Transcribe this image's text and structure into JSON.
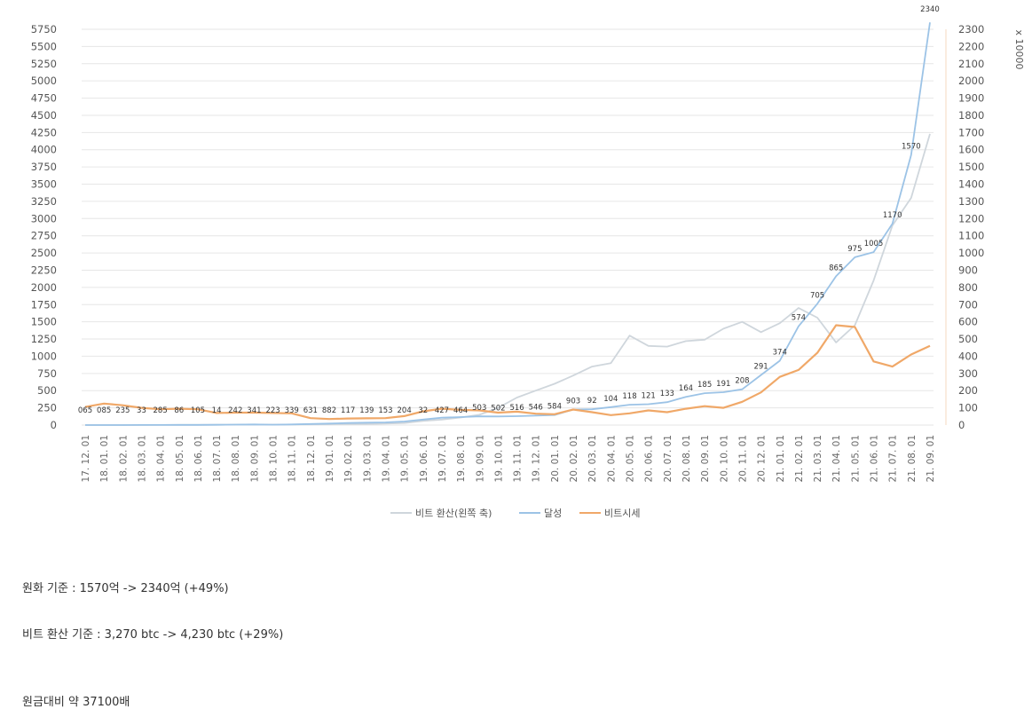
{
  "chart_data": {
    "type": "line",
    "title": "",
    "y_left": {
      "min": 0,
      "max": 5750,
      "step": 250
    },
    "y_right": {
      "min": 0,
      "max": 2300,
      "step": 100,
      "unit_label": "x 10000"
    },
    "x_categories": [
      "17. 12. 01",
      "18. 01. 01",
      "18. 02. 01",
      "18. 03. 01",
      "18. 04. 01",
      "18. 05. 01",
      "18. 06. 01",
      "18. 07. 01",
      "18. 08. 01",
      "18. 09. 01",
      "18. 10. 01",
      "18. 11. 01",
      "18. 12. 01",
      "19. 01. 01",
      "19. 02. 01",
      "19. 03. 01",
      "19. 04. 01",
      "19. 05. 01",
      "19. 06. 01",
      "19. 07. 01",
      "19. 08. 01",
      "19. 09. 01",
      "19. 10. 01",
      "19. 11. 01",
      "19. 12. 01",
      "20. 01. 01",
      "20. 02. 01",
      "20. 03. 01",
      "20. 04. 01",
      "20. 05. 01",
      "20. 06. 01",
      "20. 07. 01",
      "20. 08. 01",
      "20. 09. 01",
      "20. 10. 01",
      "20. 11. 01",
      "20. 12. 01",
      "21. 01. 01",
      "21. 02. 01",
      "21. 03. 01",
      "21. 04. 01",
      "21. 05. 01",
      "21. 06. 01",
      "21. 07. 01",
      "21. 08. 01",
      "21. 09. 01"
    ],
    "series": [
      {
        "name": "비트 환산(왼쪽 축)",
        "axis": "left",
        "color": "#cfd6dc",
        "values": [
          0,
          0,
          0,
          0,
          1,
          2,
          3,
          4,
          5,
          6,
          7,
          8,
          10,
          12,
          14,
          16,
          20,
          30,
          60,
          80,
          110,
          150,
          250,
          400,
          500,
          600,
          720,
          850,
          900,
          1300,
          1150,
          1140,
          1220,
          1240,
          1400,
          1500,
          1350,
          1480,
          1700,
          1560,
          1200,
          1450,
          2100,
          2900,
          3300,
          4230
        ]
      },
      {
        "name": "달성",
        "axis": "right",
        "color": "#9cc3e6",
        "values": [
          0.065,
          0.085,
          0.23,
          0.33,
          0.285,
          0.86,
          1.05,
          1.4,
          2.42,
          3.41,
          2.23,
          3.39,
          6.31,
          8.82,
          11.7,
          13.9,
          15.3,
          20.4,
          32,
          42.7,
          46.4,
          50.3,
          50.2,
          51.6,
          54.6,
          58.4,
          90.3,
          92,
          104,
          118,
          121,
          133,
          164,
          185,
          191,
          208,
          291,
          374,
          574,
          705,
          865,
          975,
          1005,
          1170,
          1570,
          2340
        ]
      },
      {
        "name": "비트시세",
        "axis": "right",
        "color": "#f0a868",
        "values": [
          105,
          125,
          115,
          100,
          92,
          95,
          92,
          70,
          72,
          72,
          70,
          68,
          40,
          35,
          38,
          39,
          40,
          52,
          80,
          95,
          88,
          85,
          72,
          78,
          66,
          63,
          90,
          75,
          58,
          68,
          85,
          75,
          95,
          110,
          100,
          135,
          190,
          280,
          320,
          420,
          580,
          570,
          370,
          340,
          410,
          460
        ]
      }
    ],
    "data_labels": [
      "065",
      "085",
      "235",
      "33",
      "285",
      "86",
      "105",
      "14",
      "242",
      "341",
      "223",
      "339",
      "631",
      "882",
      "117",
      "139",
      "153",
      "204",
      "32",
      "427",
      "464",
      "503",
      "502",
      "516",
      "546",
      "584",
      "903",
      "92",
      "104",
      "118",
      "121",
      "133",
      "164",
      "185",
      "191",
      "208",
      "291",
      "374",
      "574",
      "705",
      "865",
      "975",
      "1005",
      "1170",
      "1570",
      "2340"
    ],
    "legend": [
      "비트 환산(왼쪽 축)",
      "달성",
      "비트시세"
    ],
    "legend_position": "bottom",
    "grid": true
  },
  "notes": {
    "krw": "원화 기준 : 1570억 -> 2340억 (+49%)",
    "btc": "비트 환산 기준 : 3,270 btc -> 4,230 btc (+29%)",
    "ratio": "원금대비 약 37100배"
  }
}
